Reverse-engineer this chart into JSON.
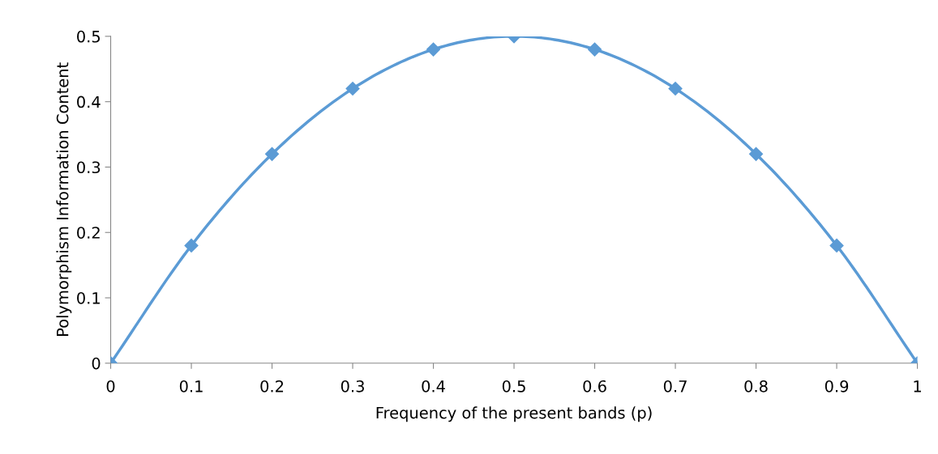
{
  "chart_data": {
    "type": "line",
    "xlabel": "Frequency of the present bands (p)",
    "ylabel": "Polymorphism Information Content",
    "x": [
      0,
      0.1,
      0.2,
      0.3,
      0.4,
      0.5,
      0.6,
      0.7,
      0.8,
      0.9,
      1
    ],
    "series": [
      {
        "color": "#5b9bd5",
        "values": [
          0,
          0.18,
          0.32,
          0.42,
          0.48,
          0.5,
          0.48,
          0.42,
          0.32,
          0.18,
          0
        ]
      }
    ],
    "xlim": [
      0,
      1
    ],
    "xticks": [
      0,
      0.1,
      0.2,
      0.3,
      0.4,
      0.5,
      0.6,
      0.7,
      0.8,
      0.9,
      1
    ],
    "ylim": [
      0,
      0.5
    ],
    "yticks": [
      0,
      0.1,
      0.2,
      0.3,
      0.4,
      0.5
    ],
    "marker": "diamond",
    "line_style": "solid",
    "grid": false,
    "legend": false
  }
}
